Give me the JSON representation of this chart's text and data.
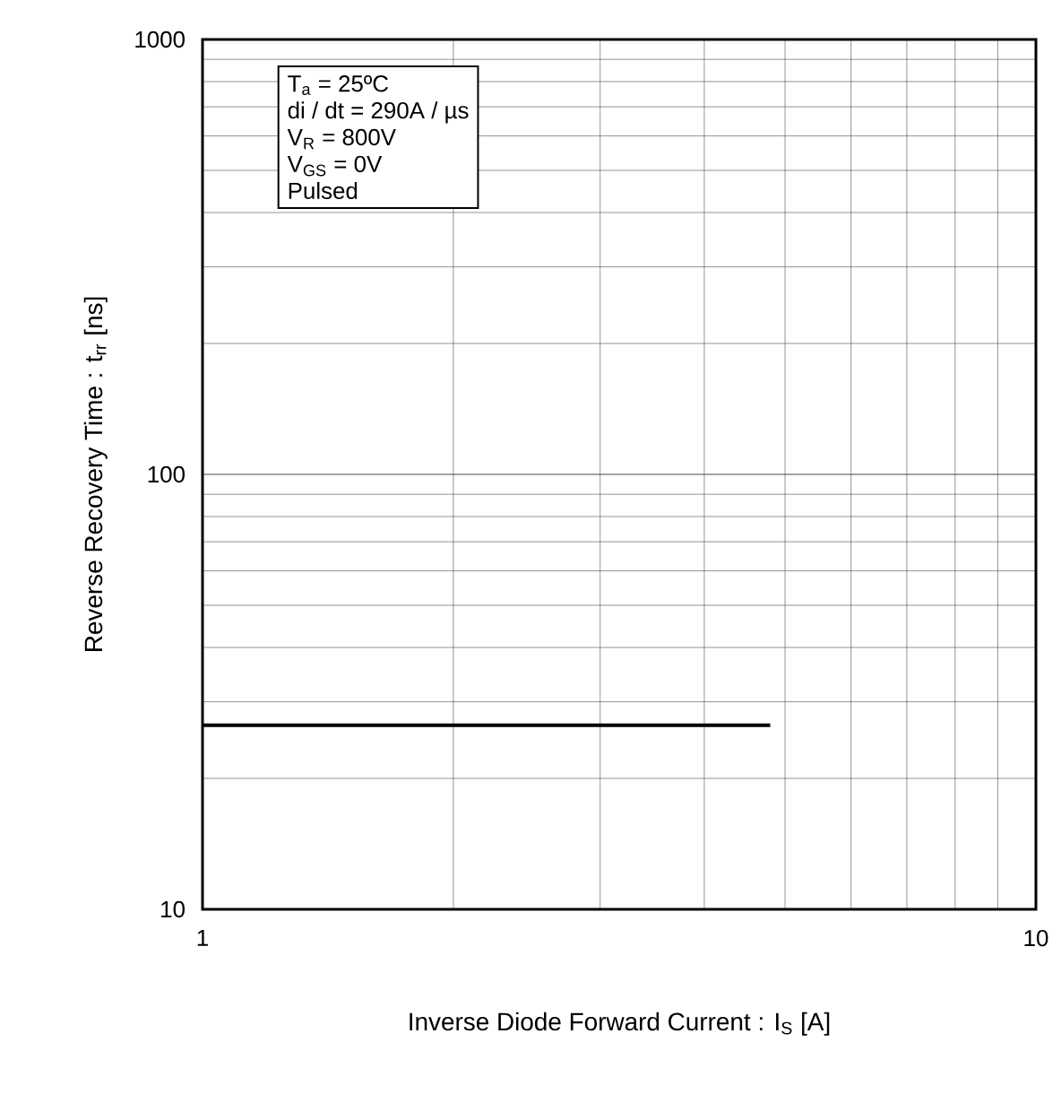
{
  "chart_data": {
    "type": "line",
    "xlabel": "Inverse Diode  Forward Current : I$_{S}$ [A]",
    "ylabel": "Reverse Recovery Time : t$_{rr}$ [ns]",
    "annotations": [
      "T$_{a}$ = 25ºC",
      "di / dt = 290A / µs",
      "V$_{R}$ = 800V",
      "V$_{GS}$ = 0V",
      "Pulsed"
    ],
    "x": [
      1,
      4.8
    ],
    "series": [
      {
        "color": "#000000",
        "values": [
          26.5,
          26.5
        ]
      }
    ],
    "xlim": [
      1,
      10
    ],
    "ylim": [
      10,
      1000
    ],
    "xticks": [
      1,
      10
    ],
    "yticks": [
      10,
      100,
      1000
    ],
    "log": "xy",
    "grid": true,
    "marker": "none",
    "line_style": "solid"
  }
}
